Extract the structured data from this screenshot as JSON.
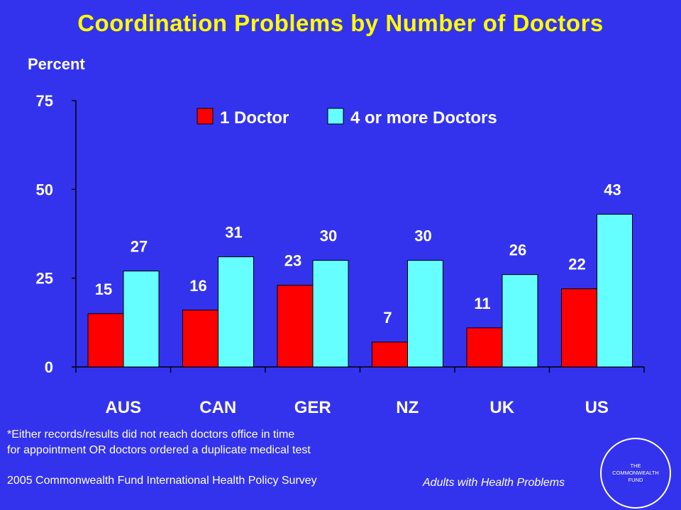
{
  "title": "Coordination Problems by Number of Doctors",
  "footnote": {
    "line1": "*Either records/results did not reach doctors office in time",
    "line2": "for appointment OR doctors ordered a duplicate medical test"
  },
  "source": "2005 Commonwealth Fund International Health Policy Survey",
  "subtitle": "Adults with Health Problems",
  "logo": {
    "line1": "THE",
    "line2": "COMMONWEALTH",
    "line3": "FUND"
  },
  "colors": {
    "background": "#3333ee",
    "title": "#ffff00",
    "text": "#ffffff",
    "series_1": "#ff0000",
    "series_2": "#66ffff"
  },
  "chart_data": {
    "type": "bar",
    "ylabel": "Percent",
    "xlabel": "",
    "ylim": [
      0,
      75
    ],
    "yticks": [
      0,
      25,
      50,
      75
    ],
    "legend_position": "top",
    "grid": false,
    "categories": [
      "AUS",
      "CAN",
      "GER",
      "NZ",
      "UK",
      "US"
    ],
    "series": [
      {
        "name": "1 Doctor",
        "color": "#ff0000",
        "values": [
          15,
          16,
          23,
          7,
          11,
          22
        ]
      },
      {
        "name": "4 or more Doctors",
        "color": "#66ffff",
        "values": [
          27,
          31,
          30,
          30,
          26,
          43
        ]
      }
    ]
  }
}
